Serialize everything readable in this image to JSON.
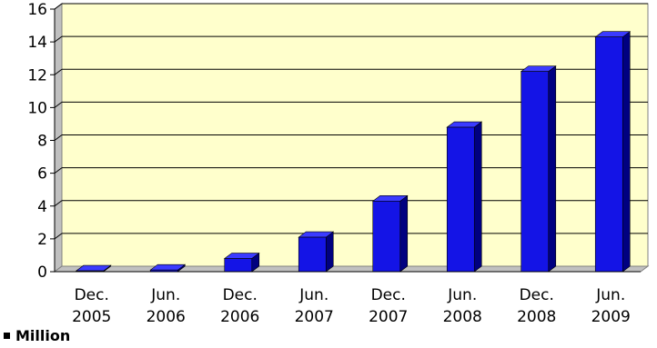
{
  "chart_data": {
    "type": "bar",
    "categories": [
      [
        "Dec.",
        "2005"
      ],
      [
        "Jun.",
        "2006"
      ],
      [
        "Dec.",
        "2006"
      ],
      [
        "Jun.",
        "2007"
      ],
      [
        "Dec.",
        "2007"
      ],
      [
        "Jun.",
        "2008"
      ],
      [
        "Dec.",
        "2008"
      ],
      [
        "Jun.",
        "2009"
      ]
    ],
    "series": [
      {
        "name": "Million",
        "values": [
          0.05,
          0.1,
          0.8,
          2.1,
          4.3,
          8.8,
          12.2,
          14.3
        ]
      }
    ],
    "yticks": [
      "0",
      "2",
      "4",
      "6",
      "8",
      "10",
      "12",
      "14",
      "16"
    ],
    "ylim": [
      0,
      16
    ],
    "grid": true,
    "legend_position": "bottom-left",
    "colors": {
      "bar_front": "#1414e6",
      "bar_side": "#000080",
      "bar_top": "#3b3bff",
      "plot_background": "#ffffcc",
      "back_wall": "#c0c0c0",
      "gridline": "#000000"
    }
  }
}
